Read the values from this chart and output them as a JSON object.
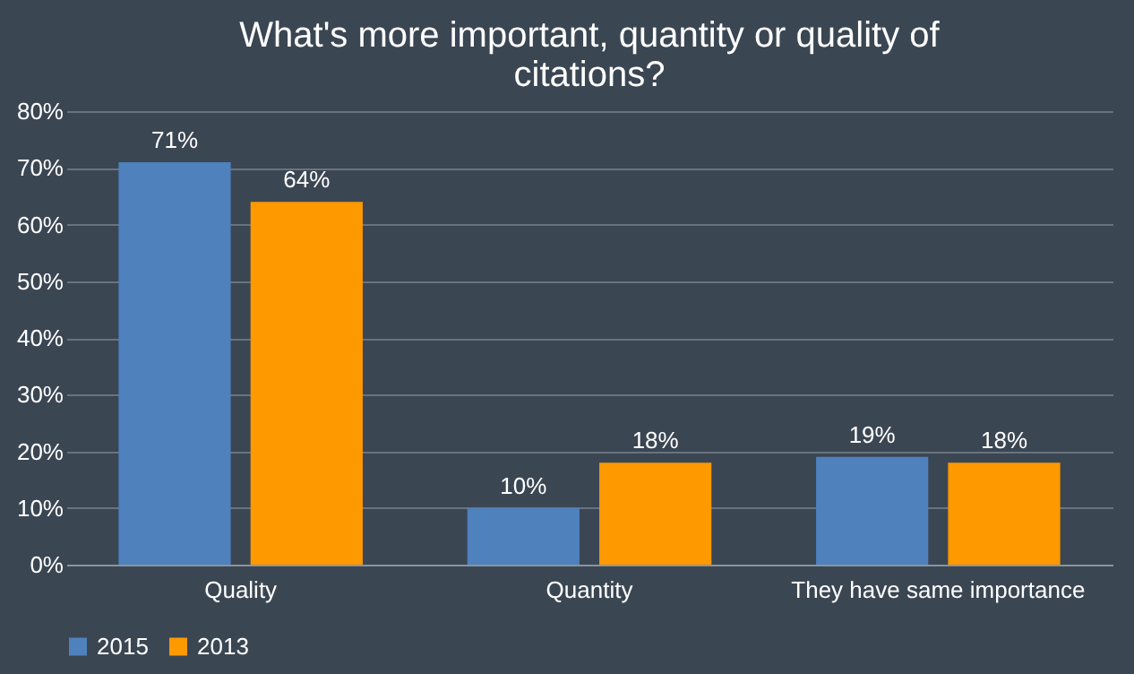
{
  "chart_data": {
    "type": "bar",
    "title": "What's more important, quantity or quality of citations?",
    "categories": [
      "Quality",
      "Quantity",
      "They have same importance"
    ],
    "series": [
      {
        "name": "2015",
        "color": "#4f81bd",
        "values": [
          71,
          10,
          19
        ],
        "value_labels": [
          "71%",
          "10%",
          "19%"
        ]
      },
      {
        "name": "2013",
        "color": "#ff9900",
        "values": [
          64,
          18,
          18
        ],
        "value_labels": [
          "64%",
          "18%",
          "18%"
        ]
      }
    ],
    "ylim": [
      0,
      80
    ],
    "yticks": [
      {
        "value": 0,
        "label": "0%"
      },
      {
        "value": 10,
        "label": "10%"
      },
      {
        "value": 20,
        "label": "20%"
      },
      {
        "value": 30,
        "label": "30%"
      },
      {
        "value": 40,
        "label": "40%"
      },
      {
        "value": 50,
        "label": "50%"
      },
      {
        "value": 60,
        "label": "60%"
      },
      {
        "value": 70,
        "label": "70%"
      },
      {
        "value": 80,
        "label": "80%"
      }
    ],
    "grid": "y",
    "legend": "bottom"
  }
}
